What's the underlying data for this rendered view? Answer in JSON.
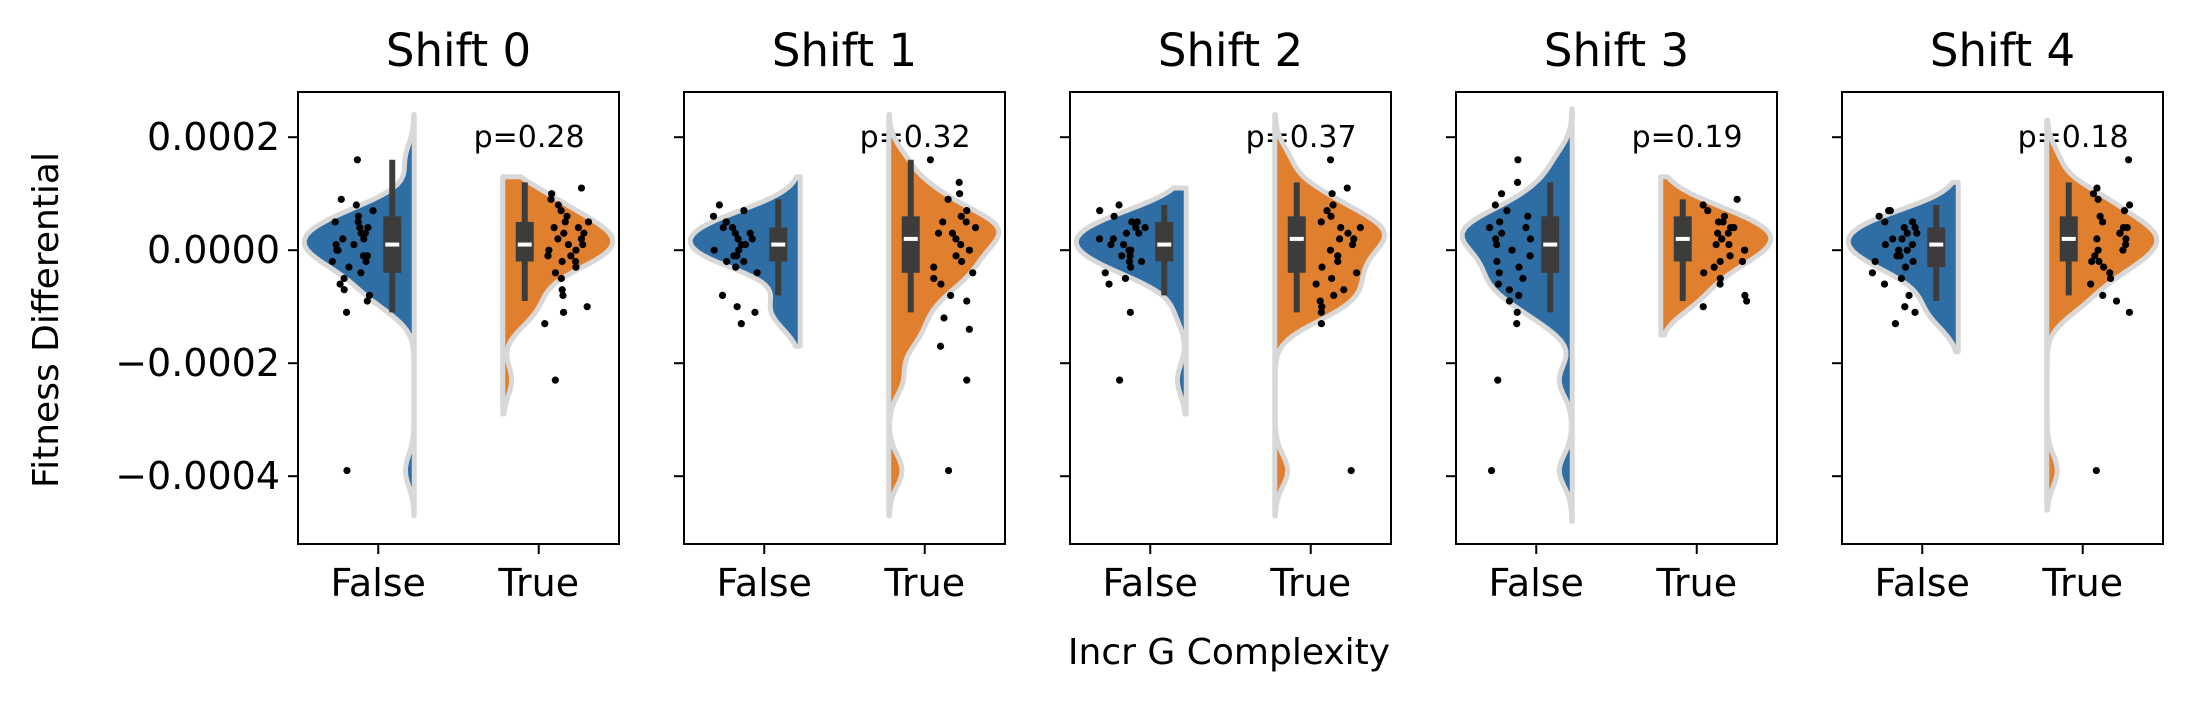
{
  "chart_data": {
    "type": "violin",
    "xlabel": "Incr G Complexity",
    "ylabel": "Fitness Differential",
    "ylim": [
      -0.00052,
      0.00028
    ],
    "yticks": [
      0.0002,
      0.0,
      -0.0002,
      -0.0004
    ],
    "ytick_labels": [
      "0.0002",
      "0.0000",
      "−0.0002",
      "−0.0004"
    ],
    "categories": [
      "False",
      "True"
    ],
    "shared_y": true,
    "colors": {
      "False": "#2f6ea5",
      "True": "#e0802e",
      "outline": "#d8d8d8",
      "box": "#3c3c3c",
      "median": "#ffffff",
      "points": "#000000"
    },
    "panels": [
      {
        "title": "Shift 0",
        "pvalue_label": "p=0.28",
        "groups": [
          {
            "name": "False",
            "q1": -4e-05,
            "median": 1e-05,
            "q3": 6e-05,
            "whisker_low": -0.00011,
            "whisker_high": 0.00016,
            "kde_low": -0.00047,
            "kde_high": 0.00024,
            "points": [
              0.00016,
              9e-05,
              8e-05,
              7e-05,
              6e-05,
              5e-05,
              5e-05,
              4e-05,
              4e-05,
              3e-05,
              3e-05,
              2e-05,
              2e-05,
              1e-05,
              1e-05,
              0.0,
              0.0,
              -1e-05,
              -1e-05,
              -2e-05,
              -2e-05,
              -3e-05,
              -4e-05,
              -5e-05,
              -6e-05,
              -7e-05,
              -8e-05,
              -9e-05,
              -0.00011,
              -0.00039
            ]
          },
          {
            "name": "True",
            "q1": -2e-05,
            "median": 1e-05,
            "q3": 5e-05,
            "whisker_low": -9e-05,
            "whisker_high": 0.00012,
            "kde_low": -0.00029,
            "kde_high": 0.00013,
            "points": [
              0.00011,
              0.0001,
              9e-05,
              8e-05,
              7e-05,
              6e-05,
              5e-05,
              5e-05,
              4e-05,
              4e-05,
              3e-05,
              3e-05,
              2e-05,
              2e-05,
              1e-05,
              1e-05,
              0.0,
              0.0,
              -1e-05,
              -1e-05,
              -2e-05,
              -2e-05,
              -3e-05,
              -4e-05,
              -5e-05,
              -7e-05,
              -8e-05,
              -0.0001,
              -0.00011,
              -0.00013,
              -0.00023
            ]
          }
        ]
      },
      {
        "title": "Shift 1",
        "pvalue_label": "p=0.32",
        "groups": [
          {
            "name": "False",
            "q1": -2e-05,
            "median": 1e-05,
            "q3": 4e-05,
            "whisker_low": -8e-05,
            "whisker_high": 9e-05,
            "kde_low": -0.00017,
            "kde_high": 0.00013,
            "points": [
              8e-05,
              7e-05,
              6e-05,
              5e-05,
              5e-05,
              4e-05,
              4e-05,
              3e-05,
              3e-05,
              2e-05,
              2e-05,
              1e-05,
              1e-05,
              0.0,
              0.0,
              -1e-05,
              -1e-05,
              -2e-05,
              -2e-05,
              -3e-05,
              -4e-05,
              -8e-05,
              -0.0001,
              -0.00011,
              -0.00013
            ]
          },
          {
            "name": "True",
            "q1": -4e-05,
            "median": 2e-05,
            "q3": 6e-05,
            "whisker_low": -0.00011,
            "whisker_high": 0.00016,
            "kde_low": -0.00047,
            "kde_high": 0.00024,
            "points": [
              0.00016,
              0.00012,
              0.0001,
              9e-05,
              7e-05,
              6e-05,
              5e-05,
              5e-05,
              4e-05,
              3e-05,
              3e-05,
              2e-05,
              1e-05,
              0.0,
              -1e-05,
              -2e-05,
              -3e-05,
              -4e-05,
              -5e-05,
              -6e-05,
              -8e-05,
              -9e-05,
              -0.00012,
              -0.00014,
              -0.00017,
              -0.00023,
              -0.00039
            ]
          }
        ]
      },
      {
        "title": "Shift 2",
        "pvalue_label": "p=0.37",
        "groups": [
          {
            "name": "False",
            "q1": -2e-05,
            "median": 1e-05,
            "q3": 5e-05,
            "whisker_low": -8e-05,
            "whisker_high": 8e-05,
            "kde_low": -0.00029,
            "kde_high": 0.00011,
            "points": [
              8e-05,
              7e-05,
              6e-05,
              5e-05,
              5e-05,
              4e-05,
              4e-05,
              3e-05,
              3e-05,
              2e-05,
              2e-05,
              1e-05,
              1e-05,
              0.0,
              0.0,
              -1e-05,
              -1e-05,
              -2e-05,
              -2e-05,
              -3e-05,
              -4e-05,
              -5e-05,
              -6e-05,
              -0.00011,
              -0.00023
            ]
          },
          {
            "name": "True",
            "q1": -4e-05,
            "median": 2e-05,
            "q3": 6e-05,
            "whisker_low": -0.00011,
            "whisker_high": 0.00012,
            "kde_low": -0.00047,
            "kde_high": 0.00024,
            "points": [
              0.00016,
              0.00011,
              0.0001,
              8e-05,
              7e-05,
              6e-05,
              5e-05,
              4e-05,
              4e-05,
              3e-05,
              2e-05,
              2e-05,
              1e-05,
              0.0,
              -1e-05,
              -2e-05,
              -3e-05,
              -4e-05,
              -5e-05,
              -6e-05,
              -7e-05,
              -8e-05,
              -9e-05,
              -0.0001,
              -0.00011,
              -0.00013,
              -0.00039
            ]
          }
        ]
      },
      {
        "title": "Shift 3",
        "pvalue_label": "p=0.19",
        "groups": [
          {
            "name": "False",
            "q1": -4e-05,
            "median": 1e-05,
            "q3": 6e-05,
            "whisker_low": -0.00011,
            "whisker_high": 0.00012,
            "kde_low": -0.00048,
            "kde_high": 0.00025,
            "points": [
              0.00016,
              0.00012,
              0.0001,
              8e-05,
              7e-05,
              6e-05,
              5e-05,
              4e-05,
              4e-05,
              3e-05,
              2e-05,
              2e-05,
              1e-05,
              0.0,
              -1e-05,
              -2e-05,
              -3e-05,
              -4e-05,
              -5e-05,
              -6e-05,
              -7e-05,
              -8e-05,
              -9e-05,
              -0.00011,
              -0.00013,
              -0.00023,
              -0.00039
            ]
          },
          {
            "name": "True",
            "q1": -2e-05,
            "median": 2e-05,
            "q3": 6e-05,
            "whisker_low": -9e-05,
            "whisker_high": 9e-05,
            "kde_low": -0.00015,
            "kde_high": 0.00013,
            "points": [
              9e-05,
              8e-05,
              7e-05,
              6e-05,
              5e-05,
              5e-05,
              4e-05,
              4e-05,
              3e-05,
              3e-05,
              2e-05,
              2e-05,
              1e-05,
              1e-05,
              0.0,
              0.0,
              -1e-05,
              -2e-05,
              -2e-05,
              -3e-05,
              -4e-05,
              -5e-05,
              -6e-05,
              -8e-05,
              -9e-05,
              -0.0001
            ]
          }
        ]
      },
      {
        "title": "Shift 4",
        "pvalue_label": "p=0.18",
        "groups": [
          {
            "name": "False",
            "q1": -3e-05,
            "median": 1e-05,
            "q3": 4e-05,
            "whisker_low": -9e-05,
            "whisker_high": 8e-05,
            "kde_low": -0.00018,
            "kde_high": 0.00012,
            "points": [
              7e-05,
              7e-05,
              6e-05,
              5e-05,
              5e-05,
              4e-05,
              4e-05,
              3e-05,
              3e-05,
              2e-05,
              2e-05,
              1e-05,
              1e-05,
              0.0,
              0.0,
              -1e-05,
              -1e-05,
              -2e-05,
              -2e-05,
              -3e-05,
              -4e-05,
              -5e-05,
              -6e-05,
              -8e-05,
              -0.0001,
              -0.00011,
              -0.00013
            ]
          },
          {
            "name": "True",
            "q1": -2e-05,
            "median": 2e-05,
            "q3": 6e-05,
            "whisker_low": -8e-05,
            "whisker_high": 0.00012,
            "kde_low": -0.00046,
            "kde_high": 0.00023,
            "points": [
              0.00016,
              0.00011,
              0.0001,
              9e-05,
              8e-05,
              7e-05,
              6e-05,
              5e-05,
              4e-05,
              4e-05,
              3e-05,
              3e-05,
              2e-05,
              2e-05,
              1e-05,
              0.0,
              0.0,
              -1e-05,
              -2e-05,
              -2e-05,
              -3e-05,
              -4e-05,
              -5e-05,
              -6e-05,
              -8e-05,
              -9e-05,
              -0.00011,
              -0.00039
            ]
          }
        ]
      }
    ]
  }
}
